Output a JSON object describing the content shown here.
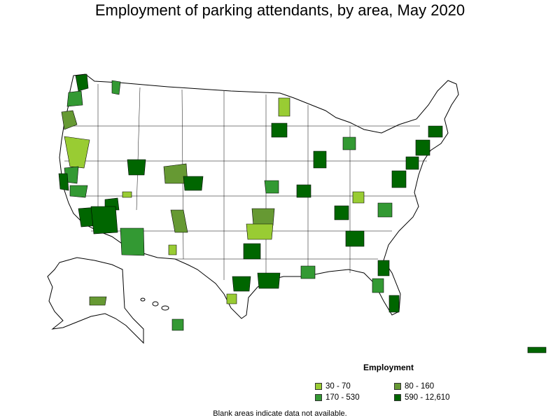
{
  "title": "Employment of parking attendants, by area, May 2020",
  "legend": {
    "title": "Employment",
    "items": [
      {
        "label": "30 - 70",
        "color": "#99cc33"
      },
      {
        "label": "80 - 160",
        "color": "#669933"
      },
      {
        "label": "170 - 530",
        "color": "#339933"
      },
      {
        "label": "590 - 12,610",
        "color": "#006600"
      }
    ]
  },
  "footnote": "Blank areas indicate data not available.",
  "map": {
    "regions": [
      "contiguous-us",
      "alaska",
      "hawaii",
      "puerto-rico"
    ],
    "highlighted_areas": [
      {
        "id": "seattle",
        "cls": 3
      },
      {
        "id": "portland",
        "cls": 2
      },
      {
        "id": "spokane",
        "cls": 2
      },
      {
        "id": "eugene",
        "cls": 1
      },
      {
        "id": "n-nevada-nonmetro",
        "cls": 0
      },
      {
        "id": "sacramento",
        "cls": 2
      },
      {
        "id": "sf-bay",
        "cls": 3
      },
      {
        "id": "fresno",
        "cls": 2
      },
      {
        "id": "los-angeles",
        "cls": 3
      },
      {
        "id": "las-vegas",
        "cls": 3
      },
      {
        "id": "salt-lake",
        "cls": 3
      },
      {
        "id": "sw-colorado",
        "cls": 1
      },
      {
        "id": "denver",
        "cls": 3
      },
      {
        "id": "n-arizona",
        "cls": 0
      },
      {
        "id": "phoenix",
        "cls": 3
      },
      {
        "id": "tucson",
        "cls": 2
      },
      {
        "id": "albuquerque",
        "cls": 1
      },
      {
        "id": "s-new-mexico",
        "cls": 0
      },
      {
        "id": "oklahoma-city",
        "cls": 1
      },
      {
        "id": "n-texas-nonmetro",
        "cls": 0
      },
      {
        "id": "dallas",
        "cls": 3
      },
      {
        "id": "houston",
        "cls": 3
      },
      {
        "id": "san-antonio",
        "cls": 3
      },
      {
        "id": "s-texas",
        "cls": 0
      },
      {
        "id": "new-orleans",
        "cls": 2
      },
      {
        "id": "kansas-city",
        "cls": 2
      },
      {
        "id": "st-louis",
        "cls": 3
      },
      {
        "id": "minneapolis",
        "cls": 3
      },
      {
        "id": "n-minnesota",
        "cls": 0
      },
      {
        "id": "chicago",
        "cls": 3
      },
      {
        "id": "detroit",
        "cls": 2
      },
      {
        "id": "nashville",
        "cls": 3
      },
      {
        "id": "atlanta",
        "cls": 3
      },
      {
        "id": "charlotte",
        "cls": 2
      },
      {
        "id": "kentucky-nonmetro",
        "cls": 0
      },
      {
        "id": "dc-baltimore",
        "cls": 3
      },
      {
        "id": "philadelphia",
        "cls": 3
      },
      {
        "id": "new-york",
        "cls": 3
      },
      {
        "id": "boston",
        "cls": 3
      },
      {
        "id": "orlando",
        "cls": 3
      },
      {
        "id": "miami",
        "cls": 3
      },
      {
        "id": "tampa",
        "cls": 2
      },
      {
        "id": "anchorage",
        "cls": 1
      },
      {
        "id": "honolulu",
        "cls": 2
      },
      {
        "id": "san-juan",
        "cls": 3
      }
    ]
  }
}
